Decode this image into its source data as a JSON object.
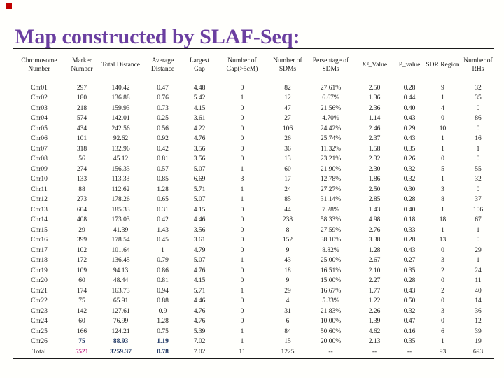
{
  "slide": {
    "title": "Map constructed by SLAF-Seq:",
    "title_color": "#6b3fa0",
    "corner_marker_color": "#c00000",
    "background_color": "#fffffc"
  },
  "table": {
    "headers": [
      "Chromosome Number",
      "Marker Number",
      "Total Distance",
      "Average Distance",
      "Largest Gap",
      "Number of Gap(>5cM)",
      "Number of SDMs",
      "Persentage of SDMs",
      "X²_Value",
      "P_value",
      "SDR Region",
      "Number of RHs"
    ],
    "rows": [
      [
        "Chr01",
        "297",
        "140.42",
        "0.47",
        "4.48",
        "0",
        "82",
        "27.61%",
        "2.50",
        "0.28",
        "9",
        "32"
      ],
      [
        "Chr02",
        "180",
        "136.88",
        "0.76",
        "5.42",
        "1",
        "12",
        "6.67%",
        "1.36",
        "0.44",
        "1",
        "35"
      ],
      [
        "Chr03",
        "218",
        "159.93",
        "0.73",
        "4.15",
        "0",
        "47",
        "21.56%",
        "2.36",
        "0.40",
        "4",
        "0"
      ],
      [
        "Chr04",
        "574",
        "142.01",
        "0.25",
        "3.61",
        "0",
        "27",
        "4.70%",
        "1.14",
        "0.43",
        "0",
        "86"
      ],
      [
        "Chr05",
        "434",
        "242.56",
        "0.56",
        "4.22",
        "0",
        "106",
        "24.42%",
        "2.46",
        "0.29",
        "10",
        "0"
      ],
      [
        "Chr06",
        "101",
        "92.62",
        "0.92",
        "4.76",
        "0",
        "26",
        "25.74%",
        "2.37",
        "0.43",
        "1",
        "16"
      ],
      [
        "Chr07",
        "318",
        "132.96",
        "0.42",
        "3.56",
        "0",
        "36",
        "11.32%",
        "1.58",
        "0.35",
        "1",
        "1"
      ],
      [
        "Chr08",
        "56",
        "45.12",
        "0.81",
        "3.56",
        "0",
        "13",
        "23.21%",
        "2.32",
        "0.26",
        "0",
        "0"
      ],
      [
        "Chr09",
        "274",
        "156.33",
        "0.57",
        "5.07",
        "1",
        "60",
        "21.90%",
        "2.30",
        "0.32",
        "5",
        "55"
      ],
      [
        "Chr10",
        "133",
        "113.33",
        "0.85",
        "6.69",
        "3",
        "17",
        "12.78%",
        "1.86",
        "0.32",
        "1",
        "32"
      ],
      [
        "Chr11",
        "88",
        "112.62",
        "1.28",
        "5.71",
        "1",
        "24",
        "27.27%",
        "2.50",
        "0.30",
        "3",
        "0"
      ],
      [
        "Chr12",
        "273",
        "178.26",
        "0.65",
        "5.07",
        "1",
        "85",
        "31.14%",
        "2.85",
        "0.28",
        "8",
        "37"
      ],
      [
        "Chr13",
        "604",
        "185.33",
        "0.31",
        "4.15",
        "0",
        "44",
        "7.28%",
        "1.43",
        "0.40",
        "1",
        "106"
      ],
      [
        "Chr14",
        "408",
        "173.03",
        "0.42",
        "4.46",
        "0",
        "238",
        "58.33%",
        "4.98",
        "0.18",
        "18",
        "67"
      ],
      [
        "Chr15",
        "29",
        "41.39",
        "1.43",
        "3.56",
        "0",
        "8",
        "27.59%",
        "2.76",
        "0.33",
        "1",
        "1"
      ],
      [
        "Chr16",
        "399",
        "178.54",
        "0.45",
        "3.61",
        "0",
        "152",
        "38.10%",
        "3.38",
        "0.28",
        "13",
        "0"
      ],
      [
        "Chr17",
        "102",
        "101.64",
        "1",
        "4.79",
        "0",
        "9",
        "8.82%",
        "1.28",
        "0.43",
        "0",
        "29"
      ],
      [
        "Chr18",
        "172",
        "136.45",
        "0.79",
        "5.07",
        "1",
        "43",
        "25.00%",
        "2.67",
        "0.27",
        "3",
        "1"
      ],
      [
        "Chr19",
        "109",
        "94.13",
        "0.86",
        "4.76",
        "0",
        "18",
        "16.51%",
        "2.10",
        "0.35",
        "2",
        "24"
      ],
      [
        "Chr20",
        "60",
        "48.44",
        "0.81",
        "4.15",
        "0",
        "9",
        "15.00%",
        "2.27",
        "0.28",
        "0",
        "11"
      ],
      [
        "Chr21",
        "174",
        "163.73",
        "0.94",
        "5.71",
        "1",
        "29",
        "16.67%",
        "1.77",
        "0.43",
        "2",
        "40"
      ],
      [
        "Chr22",
        "75",
        "65.91",
        "0.88",
        "4.46",
        "0",
        "4",
        "5.33%",
        "1.22",
        "0.50",
        "0",
        "14"
      ],
      [
        "Chr23",
        "142",
        "127.61",
        "0.9",
        "4.76",
        "0",
        "31",
        "21.83%",
        "2.26",
        "0.32",
        "3",
        "36"
      ],
      [
        "Chr24",
        "60",
        "76.99",
        "1.28",
        "4.76",
        "0",
        "6",
        "10.00%",
        "1.39",
        "0.47",
        "0",
        "12"
      ],
      [
        "Chr25",
        "166",
        "124.21",
        "0.75",
        "5.39",
        "1",
        "84",
        "50.60%",
        "4.62",
        "0.16",
        "6",
        "39"
      ],
      [
        "Chr26",
        "75",
        "88.93",
        "1.19",
        "7.02",
        "1",
        "15",
        "20.00%",
        "2.13",
        "0.35",
        "1",
        "19"
      ],
      [
        "Total",
        "5521",
        "3259.37",
        "0.78",
        "7.02",
        "11",
        "1225",
        "--",
        "--",
        "--",
        "93",
        "693"
      ]
    ],
    "emphasis": [
      {
        "row": 25,
        "col": 1,
        "style": "navy"
      },
      {
        "row": 25,
        "col": 2,
        "style": "navy"
      },
      {
        "row": 25,
        "col": 3,
        "style": "navy"
      },
      {
        "row": 26,
        "col": 1,
        "style": "pink"
      },
      {
        "row": 26,
        "col": 2,
        "style": "navy"
      },
      {
        "row": 26,
        "col": 3,
        "style": "navy"
      }
    ],
    "emphasis_colors": {
      "navy": "#203864",
      "pink": "#c5338c"
    }
  }
}
